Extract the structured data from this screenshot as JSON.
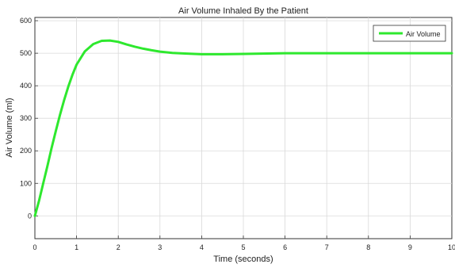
{
  "chart_data": {
    "type": "line",
    "title": "Air Volume Inhaled By the Patient",
    "xlabel": "Time (seconds)",
    "ylabel": "Air Volume (ml)",
    "xlim": [
      0,
      10
    ],
    "ylim": [
      -70,
      610
    ],
    "xticks": [
      0,
      1,
      2,
      3,
      4,
      5,
      6,
      7,
      8,
      9,
      10
    ],
    "yticks": [
      0,
      100,
      200,
      300,
      400,
      500,
      600
    ],
    "grid": true,
    "legend_position": "top-right",
    "colors": {
      "series": "#2ee82e",
      "grid": "#d9d9d9",
      "axes": "#333333"
    },
    "series": [
      {
        "name": "Air Volume",
        "x": [
          0,
          0.1,
          0.2,
          0.3,
          0.4,
          0.5,
          0.6,
          0.7,
          0.8,
          0.9,
          1.0,
          1.2,
          1.4,
          1.6,
          1.8,
          2.0,
          2.2,
          2.4,
          2.6,
          2.8,
          3.0,
          3.3,
          3.6,
          4.0,
          4.5,
          5.0,
          6.0,
          7.0,
          8.0,
          9.0,
          10.0
        ],
        "y": [
          0,
          47,
          100,
          153,
          208,
          260,
          310,
          355,
          397,
          433,
          465,
          506,
          528,
          538,
          539,
          535,
          527,
          520,
          514,
          509,
          505,
          501,
          499,
          497,
          497,
          498,
          500,
          500,
          500,
          500,
          500
        ]
      }
    ]
  }
}
